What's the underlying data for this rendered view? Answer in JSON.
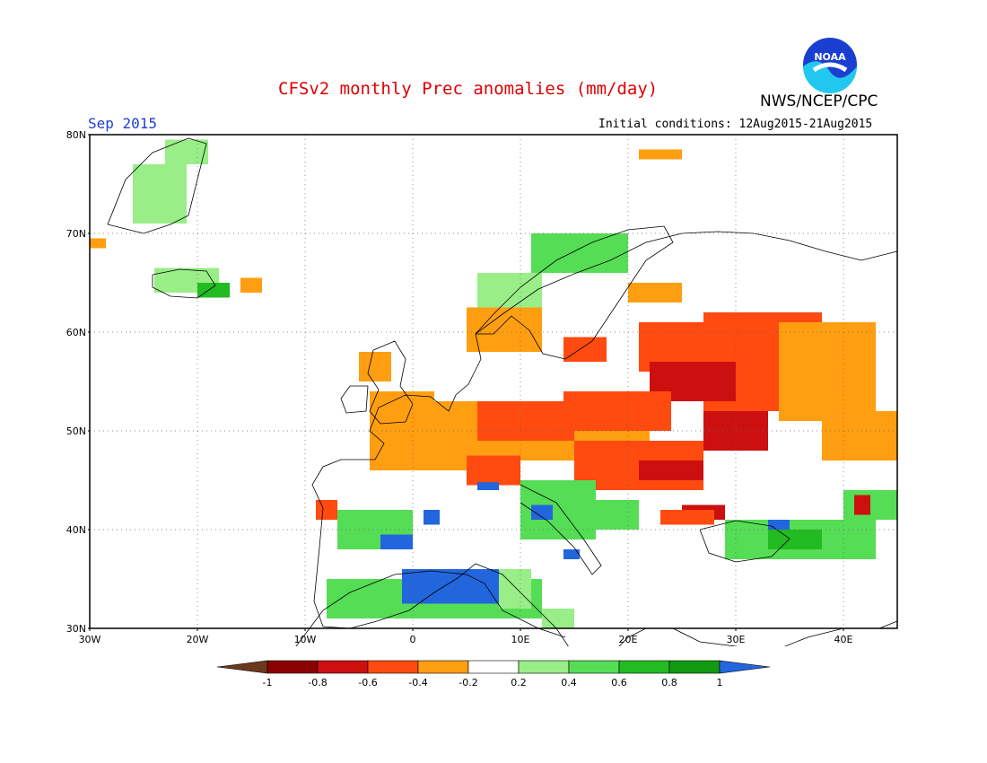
{
  "title": "CFSv2 monthly Prec anomalies (mm/day)",
  "month_label": "Sep 2015",
  "initial_conditions": "Initial conditions: 12Aug2015-21Aug2015",
  "agency": "NWS/NCEP/CPC",
  "logo_text": "NOAA",
  "lat_labels": [
    "30N",
    "40N",
    "50N",
    "60N",
    "70N",
    "80N"
  ],
  "lat_values": [
    30,
    40,
    50,
    60,
    70,
    80
  ],
  "lon_labels": [
    "30W",
    "20W",
    "10W",
    "0",
    "10E",
    "20E",
    "30E",
    "40E"
  ],
  "lon_values": [
    -30,
    -20,
    -10,
    0,
    10,
    20,
    30,
    40
  ],
  "extent": {
    "lon": [
      -30,
      45
    ],
    "lat": [
      30,
      80
    ]
  },
  "colorbar": {
    "labels": [
      "-1",
      "-0.8",
      "-0.6",
      "-0.4",
      "-0.2",
      "0.2",
      "0.4",
      "0.6",
      "0.8",
      "1"
    ],
    "colors": [
      "#8b0000",
      "#cc1010",
      "#ff4a10",
      "#ff9e10",
      "#ffffff",
      "#99ee88",
      "#55dd55",
      "#22bb22",
      "#119911"
    ],
    "under_color": "#6b3a1e",
    "over_color": "#2266dd"
  },
  "class_colors": {
    "r1": "#8b0000",
    "r2": "#cc1010",
    "r3": "#ff4a10",
    "r4": "#ff9e10",
    "g1": "#99ee88",
    "g2": "#55dd55",
    "g3": "#22bb22",
    "g4": "#119911",
    "b": "#2266dd"
  },
  "anomaly_regions": [
    {
      "name": "greenland-wet",
      "cls": "g1",
      "lon": [
        -26,
        -21
      ],
      "lat": [
        71,
        77
      ]
    },
    {
      "name": "greenland-wet-2",
      "cls": "g1",
      "lon": [
        -23,
        -19
      ],
      "lat": [
        77,
        79.5
      ]
    },
    {
      "name": "greenland-dry",
      "cls": "r4",
      "lon": [
        -30,
        -28.5
      ],
      "lat": [
        68.5,
        69.5
      ]
    },
    {
      "name": "iceland-wet",
      "cls": "g1",
      "lon": [
        -24,
        -18
      ],
      "lat": [
        64,
        66.5
      ]
    },
    {
      "name": "iceland-wet-2",
      "cls": "g3",
      "lon": [
        -20,
        -17
      ],
      "lat": [
        63.5,
        65
      ]
    },
    {
      "name": "iceland-dry",
      "cls": "r4",
      "lon": [
        -16,
        -14
      ],
      "lat": [
        64,
        65.5
      ]
    },
    {
      "name": "svalbard-dry",
      "cls": "r4",
      "lon": [
        21,
        25
      ],
      "lat": [
        77.5,
        78.5
      ]
    },
    {
      "name": "norway-coast-wet",
      "cls": "g1",
      "lon": [
        6,
        12
      ],
      "lat": [
        62,
        66
      ]
    },
    {
      "name": "norway-north-wet",
      "cls": "g2",
      "lon": [
        11,
        20
      ],
      "lat": [
        66,
        70
      ]
    },
    {
      "name": "norway-south-dry",
      "cls": "r4",
      "lon": [
        5,
        12
      ],
      "lat": [
        58,
        62.5
      ]
    },
    {
      "name": "finland-dry",
      "cls": "r4",
      "lon": [
        20,
        25
      ],
      "lat": [
        63,
        65
      ]
    },
    {
      "name": "sweden-south-dry",
      "cls": "r3",
      "lon": [
        14,
        18
      ],
      "lat": [
        57,
        59.5
      ]
    },
    {
      "name": "baltic-dry",
      "cls": "r3",
      "lon": [
        21,
        28
      ],
      "lat": [
        56,
        61
      ]
    },
    {
      "name": "russia-west-dry",
      "cls": "r3",
      "lon": [
        27,
        38
      ],
      "lat": [
        52,
        62
      ]
    },
    {
      "name": "russia-east-dry",
      "cls": "r4",
      "lon": [
        34,
        43
      ],
      "lat": [
        51,
        61
      ]
    },
    {
      "name": "belarus-very-dry",
      "cls": "r2",
      "lon": [
        22,
        30
      ],
      "lat": [
        53,
        57
      ]
    },
    {
      "name": "ukraine-dry",
      "cls": "r2",
      "lon": [
        27,
        33
      ],
      "lat": [
        48,
        52
      ]
    },
    {
      "name": "central-europe-dry",
      "cls": "r4",
      "lon": [
        0,
        22
      ],
      "lat": [
        47,
        53
      ]
    },
    {
      "name": "germany-dry",
      "cls": "r3",
      "lon": [
        6,
        15
      ],
      "lat": [
        49,
        53
      ]
    },
    {
      "name": "poland-dry",
      "cls": "r3",
      "lon": [
        14,
        24
      ],
      "lat": [
        50,
        54
      ]
    },
    {
      "name": "hungary-dry",
      "cls": "r3",
      "lon": [
        15,
        27
      ],
      "lat": [
        44,
        49
      ]
    },
    {
      "name": "romania-very-dry",
      "cls": "r2",
      "lon": [
        21,
        27
      ],
      "lat": [
        45,
        47
      ]
    },
    {
      "name": "france-dry",
      "cls": "r4",
      "lon": [
        -4,
        6
      ],
      "lat": [
        46,
        50
      ]
    },
    {
      "name": "alps-dry",
      "cls": "r3",
      "lon": [
        5,
        10
      ],
      "lat": [
        44.5,
        47.5
      ]
    },
    {
      "name": "uk-dry",
      "cls": "r4",
      "lon": [
        -4,
        2
      ],
      "lat": [
        50,
        54
      ]
    },
    {
      "name": "scotland-dry",
      "cls": "r4",
      "lon": [
        -5,
        -2
      ],
      "lat": [
        55,
        58
      ]
    },
    {
      "name": "portugal-dry",
      "cls": "r3",
      "lon": [
        -9,
        -7
      ],
      "lat": [
        41,
        43
      ]
    },
    {
      "name": "iberia-wet",
      "cls": "g2",
      "lon": [
        -7,
        0
      ],
      "lat": [
        38,
        42
      ]
    },
    {
      "name": "iberia-blue",
      "cls": "b",
      "lon": [
        -3,
        0
      ],
      "lat": [
        38,
        39.5
      ]
    },
    {
      "name": "spain-east-blue",
      "cls": "b",
      "lon": [
        1,
        2.5
      ],
      "lat": [
        40.5,
        42
      ]
    },
    {
      "name": "north-africa-wet",
      "cls": "g2",
      "lon": [
        -8,
        12
      ],
      "lat": [
        31,
        35
      ]
    },
    {
      "name": "north-africa-blue",
      "cls": "b",
      "lon": [
        -1,
        11
      ],
      "lat": [
        32.5,
        36
      ]
    },
    {
      "name": "libya-wet",
      "cls": "g1",
      "lon": [
        12,
        15
      ],
      "lat": [
        30,
        32
      ]
    },
    {
      "name": "tunisia-wet",
      "cls": "g1",
      "lon": [
        8,
        11
      ],
      "lat": [
        32,
        36
      ]
    },
    {
      "name": "italy-wet",
      "cls": "g2",
      "lon": [
        10,
        17
      ],
      "lat": [
        39,
        45
      ]
    },
    {
      "name": "italy-blue",
      "cls": "b",
      "lon": [
        11,
        13
      ],
      "lat": [
        41,
        42.5
      ]
    },
    {
      "name": "sardinia-blue",
      "cls": "b",
      "lon": [
        6,
        8
      ],
      "lat": [
        44,
        44.8
      ]
    },
    {
      "name": "sicily-blue",
      "cls": "b",
      "lon": [
        14,
        15.5
      ],
      "lat": [
        37,
        38
      ]
    },
    {
      "name": "balkans-wet",
      "cls": "g2",
      "lon": [
        17,
        21
      ],
      "lat": [
        40,
        43
      ]
    },
    {
      "name": "bulgaria-very-dry",
      "cls": "r2",
      "lon": [
        25,
        29
      ],
      "lat": [
        41,
        42.5
      ]
    },
    {
      "name": "greece-dry",
      "cls": "r3",
      "lon": [
        23,
        28
      ],
      "lat": [
        40.5,
        42
      ]
    },
    {
      "name": "turkey-wet",
      "cls": "g2",
      "lon": [
        29,
        43
      ],
      "lat": [
        37,
        41
      ]
    },
    {
      "name": "turkey-wet-2",
      "cls": "g3",
      "lon": [
        33,
        38
      ],
      "lat": [
        38,
        40
      ]
    },
    {
      "name": "turkey-blue",
      "cls": "b",
      "lon": [
        33,
        35
      ],
      "lat": [
        40,
        41
      ]
    },
    {
      "name": "caucasus-wet",
      "cls": "g2",
      "lon": [
        40,
        45
      ],
      "lat": [
        41,
        44
      ]
    },
    {
      "name": "caucasus-dry",
      "cls": "r2",
      "lon": [
        41,
        42.5
      ],
      "lat": [
        41.5,
        43.5
      ]
    },
    {
      "name": "volga-dry",
      "cls": "r4",
      "lon": [
        38,
        45
      ],
      "lat": [
        47,
        52
      ]
    }
  ]
}
